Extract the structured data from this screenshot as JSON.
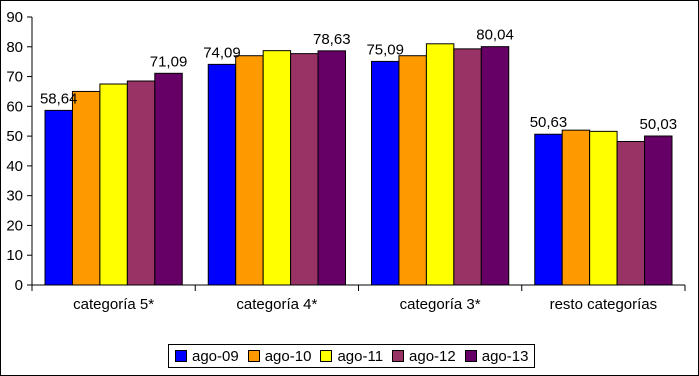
{
  "chart_data": {
    "type": "bar",
    "title": "",
    "xlabel": "",
    "ylabel": "",
    "ylim": [
      0,
      90
    ],
    "yticks": [
      "0",
      "10",
      "20",
      "30",
      "40",
      "50",
      "60",
      "70",
      "80",
      "90"
    ],
    "categories": [
      "categoría 5*",
      "categoría 4*",
      "categoría 3*",
      "resto categorías"
    ],
    "series": [
      {
        "name": "ago-09",
        "color": "#0000FF",
        "values": [
          58.64,
          74.09,
          75.09,
          50.63
        ]
      },
      {
        "name": "ago-10",
        "color": "#FF9900",
        "values": [
          65.0,
          77.0,
          77.0,
          52.0
        ]
      },
      {
        "name": "ago-11",
        "color": "#FFFF00",
        "values": [
          67.5,
          78.7,
          81.0,
          51.6
        ]
      },
      {
        "name": "ago-12",
        "color": "#993366",
        "values": [
          68.5,
          77.7,
          79.3,
          48.2
        ]
      },
      {
        "name": "ago-13",
        "color": "#660066",
        "values": [
          71.09,
          78.63,
          80.04,
          50.03
        ]
      }
    ],
    "data_labels": [
      {
        "category": 0,
        "series": 0,
        "text": "58,64"
      },
      {
        "category": 0,
        "series": 4,
        "text": "71,09"
      },
      {
        "category": 1,
        "series": 0,
        "text": "74,09"
      },
      {
        "category": 1,
        "series": 4,
        "text": "78,63"
      },
      {
        "category": 2,
        "series": 0,
        "text": "75,09"
      },
      {
        "category": 2,
        "series": 4,
        "text": "80,04"
      },
      {
        "category": 3,
        "series": 0,
        "text": "50,63"
      },
      {
        "category": 3,
        "series": 4,
        "text": "50,03"
      }
    ],
    "grid": false,
    "legend_position": "bottom"
  }
}
